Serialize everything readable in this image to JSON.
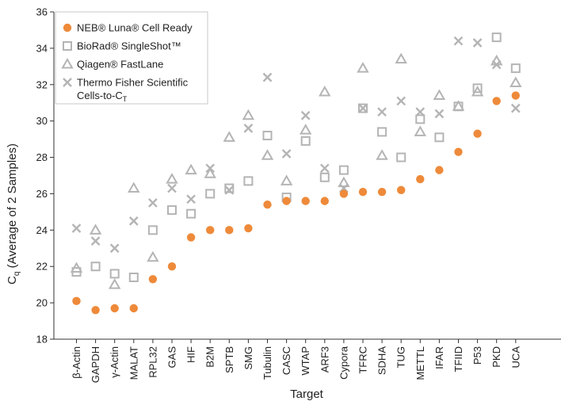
{
  "chart_data": {
    "type": "scatter",
    "xlabel": "Target",
    "ylabel": "C",
    "ylabel_sub": "q",
    "ylabel_rest": " (Average of 2 Samples)",
    "ylim": [
      18,
      36
    ],
    "yticks": [
      18,
      20,
      22,
      24,
      26,
      28,
      30,
      32,
      34,
      36
    ],
    "legend_position": "top-left",
    "categories": [
      "β-Actin",
      "GAPDH",
      "γ-Actin",
      "MALAT",
      "RPL32",
      "GAS",
      "HIF",
      "B2M",
      "SPTB",
      "SMG",
      "Tubulin",
      "CASC",
      "WTAP",
      "ARF3",
      "Cypora",
      "TFRC",
      "SDHA",
      "TUG",
      "METTL",
      "IFAR",
      "TFIID",
      "P53",
      "PKD",
      "UCA"
    ],
    "series": [
      {
        "name": "NEB® Luna® Cell Ready",
        "marker": "circle",
        "color": "#ee8a3a",
        "values": [
          20.1,
          19.6,
          19.7,
          19.7,
          21.3,
          22.0,
          23.6,
          24.0,
          24.0,
          24.1,
          25.4,
          25.6,
          25.6,
          25.6,
          26.0,
          26.1,
          26.1,
          26.2,
          26.8,
          27.3,
          28.3,
          29.3,
          31.1,
          31.4
        ]
      },
      {
        "name": "BioRad® SingleShot™",
        "marker": "square",
        "color": "#b4b4b4",
        "values": [
          21.7,
          22.0,
          21.6,
          21.4,
          24.0,
          25.1,
          24.9,
          26.0,
          26.3,
          26.7,
          29.2,
          25.8,
          28.9,
          26.9,
          27.3,
          30.7,
          29.4,
          28.0,
          30.1,
          29.1,
          30.8,
          31.8,
          34.6,
          32.9
        ]
      },
      {
        "name": "Qiagen® FastLane",
        "marker": "triangle",
        "color": "#b4b4b4",
        "values": [
          21.9,
          24.0,
          21.0,
          26.3,
          22.5,
          26.8,
          27.3,
          27.1,
          29.1,
          30.3,
          28.1,
          26.7,
          29.5,
          31.6,
          26.6,
          32.9,
          28.1,
          33.4,
          29.4,
          31.4,
          30.8,
          31.6,
          33.3,
          32.1
        ]
      },
      {
        "name": "Thermo Fisher Scientific",
        "name_line2": "Cells-to-C",
        "name_line2_sub": "T",
        "marker": "x",
        "color": "#b4b4b4",
        "values": [
          24.1,
          23.4,
          23.0,
          24.5,
          25.5,
          26.3,
          25.7,
          27.4,
          26.2,
          29.6,
          32.4,
          28.2,
          30.3,
          27.4,
          26.3,
          30.7,
          30.5,
          31.1,
          30.5,
          30.4,
          34.4,
          34.3,
          33.1,
          30.7
        ]
      }
    ]
  }
}
